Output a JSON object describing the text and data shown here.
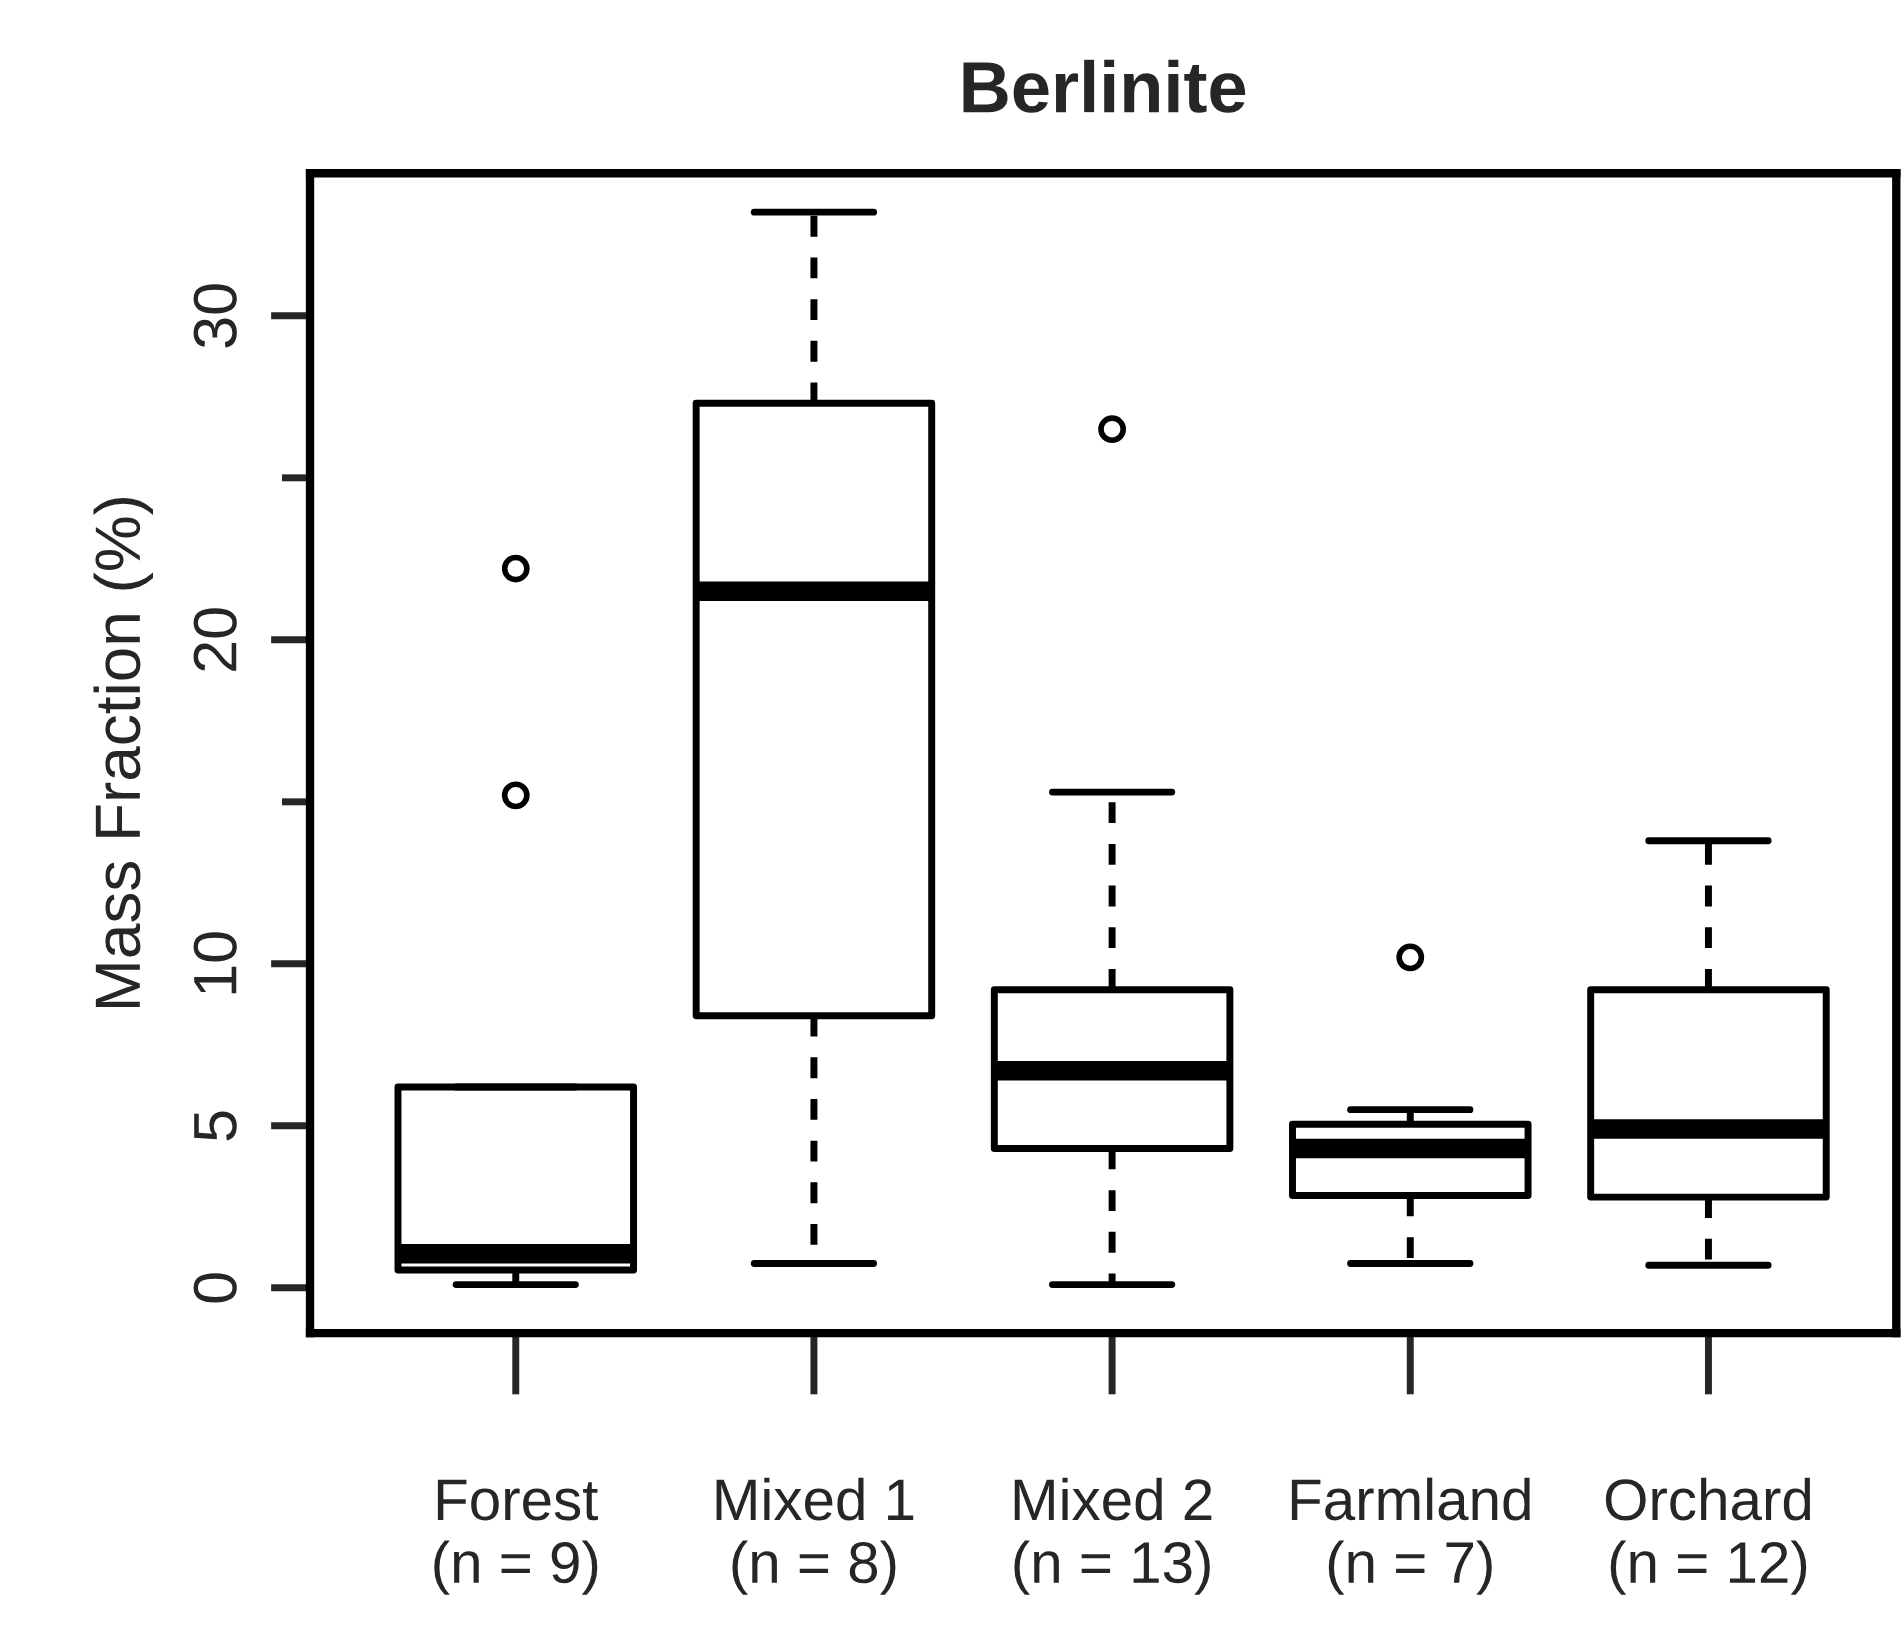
{
  "chart_data": {
    "type": "box",
    "title": "Berlinite",
    "ylabel": "Mass Fraction (%)",
    "categories": [
      "Forest\n(n = 9)",
      "Mixed 1\n(n = 8)",
      "Mixed 2\n(n = 13)",
      "Farmland\n(n = 7)",
      "Orchard\n(n = 12)"
    ],
    "boxes": [
      {
        "low": 0.1,
        "q1": 0.55,
        "median": 1.05,
        "q3": 6.2,
        "high": 6.2,
        "outliers": [
          22.2,
          15.2
        ]
      },
      {
        "low": 0.75,
        "q1": 8.4,
        "median": 21.5,
        "q3": 27.3,
        "high": 33.2
      },
      {
        "low": 0.1,
        "q1": 4.3,
        "median": 6.7,
        "q3": 9.2,
        "high": 15.3,
        "outliers": [
          26.5
        ]
      },
      {
        "low": 0.75,
        "q1": 2.85,
        "median": 4.3,
        "q3": 5.05,
        "high": 5.5,
        "outliers": [
          10.2
        ]
      },
      {
        "low": 0.7,
        "q1": 2.8,
        "median": 4.9,
        "q3": 9.2,
        "high": 13.8
      }
    ],
    "ylim": [
      -1.4,
      34.4
    ],
    "yticks": [
      0,
      5,
      10,
      {
        "value": 15,
        "label": null
      },
      20,
      {
        "value": 25,
        "label": null
      },
      30
    ],
    "grid": false,
    "legend": false
  }
}
